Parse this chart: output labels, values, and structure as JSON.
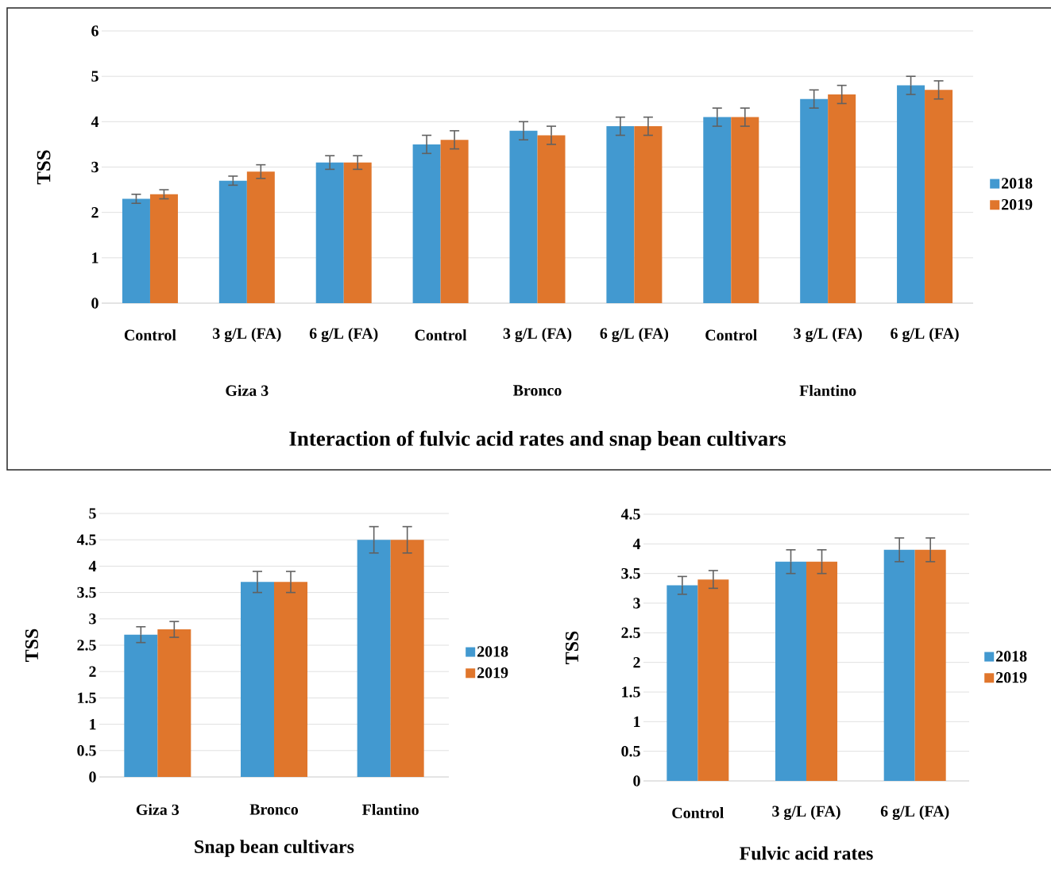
{
  "chart_data": [
    {
      "type": "bar",
      "xlabel": "Interaction of fulvic acid rates and snap bean cultivars",
      "ylabel": "TSS",
      "categories": [
        "Control",
        "3 g/L (FA)",
        "6 g/L (FA)",
        "Control",
        "3 g/L (FA)",
        "6 g/L (FA)",
        "Control",
        "3 g/L (FA)",
        "6 g/L (FA)"
      ],
      "annotations": [
        "Giza 3",
        "Bronco",
        "Flantino"
      ],
      "series": [
        {
          "name": "2018",
          "color": "#4299d0",
          "values": [
            2.3,
            2.7,
            3.1,
            3.5,
            3.8,
            3.9,
            4.1,
            4.5,
            4.8
          ],
          "errors": [
            0.1,
            0.1,
            0.15,
            0.2,
            0.2,
            0.2,
            0.2,
            0.2,
            0.2
          ]
        },
        {
          "name": "2019",
          "color": "#e0762c",
          "values": [
            2.4,
            2.9,
            3.1,
            3.6,
            3.7,
            3.9,
            4.1,
            4.6,
            4.7
          ],
          "errors": [
            0.1,
            0.15,
            0.15,
            0.2,
            0.2,
            0.2,
            0.2,
            0.2,
            0.2
          ]
        }
      ],
      "ylim": [
        0,
        6
      ],
      "yticks": [
        0,
        1,
        2,
        3,
        4,
        5,
        6
      ],
      "grid": "y",
      "legend": "right"
    },
    {
      "type": "bar",
      "xlabel": "Snap bean cultivars",
      "ylabel": "TSS",
      "categories": [
        "Giza 3",
        "Bronco",
        "Flantino"
      ],
      "series": [
        {
          "name": "2018",
          "color": "#4299d0",
          "values": [
            2.7,
            3.7,
            4.5
          ],
          "errors": [
            0.15,
            0.2,
            0.25
          ]
        },
        {
          "name": "2019",
          "color": "#e0762c",
          "values": [
            2.8,
            3.7,
            4.5
          ],
          "errors": [
            0.15,
            0.2,
            0.25
          ]
        }
      ],
      "ylim": [
        0,
        5
      ],
      "yticks": [
        0,
        0.5,
        1,
        1.5,
        2,
        2.5,
        3,
        3.5,
        4,
        4.5,
        5
      ],
      "grid": "y",
      "legend": "right"
    },
    {
      "type": "bar",
      "xlabel": "Fulvic acid rates",
      "ylabel": "TSS",
      "categories": [
        "Control",
        "3 g/L (FA)",
        "6 g/L (FA)"
      ],
      "series": [
        {
          "name": "2018",
          "color": "#4299d0",
          "values": [
            3.3,
            3.7,
            3.9
          ],
          "errors": [
            0.15,
            0.2,
            0.2
          ]
        },
        {
          "name": "2019",
          "color": "#e0762c",
          "values": [
            3.4,
            3.7,
            3.9
          ],
          "errors": [
            0.15,
            0.2,
            0.2
          ]
        }
      ],
      "ylim": [
        0,
        4.5
      ],
      "yticks": [
        0,
        0.5,
        1,
        1.5,
        2,
        2.5,
        3,
        3.5,
        4,
        4.5
      ],
      "grid": "y",
      "legend": "right"
    }
  ]
}
